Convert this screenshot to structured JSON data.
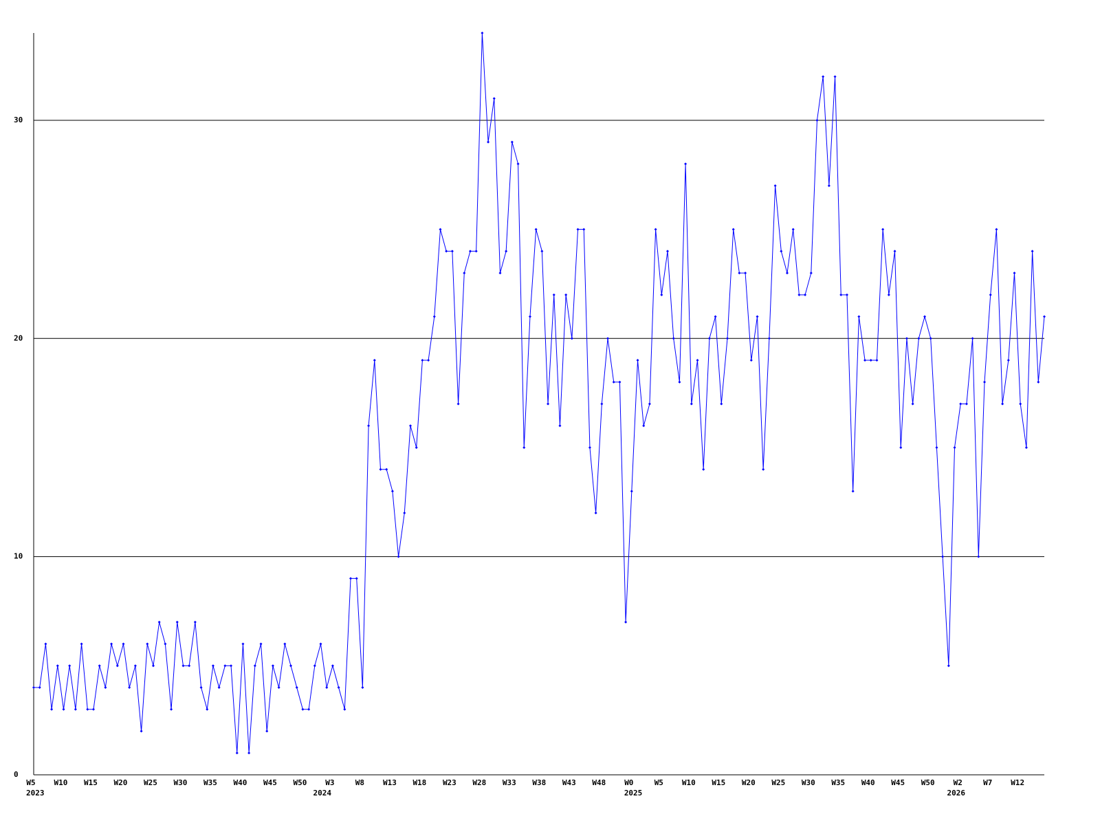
{
  "chart_data": {
    "type": "line",
    "categories": [
      "W5",
      null,
      null,
      null,
      null,
      "W10",
      null,
      null,
      null,
      null,
      "W15",
      null,
      null,
      null,
      null,
      "W20",
      null,
      null,
      null,
      null,
      "W25",
      null,
      null,
      null,
      null,
      "W30",
      null,
      null,
      null,
      null,
      "W35",
      null,
      null,
      null,
      null,
      "W40",
      null,
      null,
      null,
      null,
      "W45",
      null,
      null,
      null,
      null,
      "W50",
      null,
      null,
      null,
      null,
      "W3",
      null,
      null,
      null,
      null,
      "W8",
      null,
      null,
      null,
      null,
      "W13",
      null,
      null,
      null,
      null,
      "W18",
      null,
      null,
      null,
      null,
      "W23",
      null,
      null,
      null,
      null,
      "W28",
      null,
      null,
      null,
      null,
      "W33",
      null,
      null,
      null,
      null,
      "W38",
      null,
      null,
      null,
      null,
      "W43",
      null,
      null,
      null,
      null,
      "W48",
      null,
      null,
      null,
      null,
      "W0",
      null,
      null,
      null,
      null,
      "W5",
      null,
      null,
      null,
      null,
      "W10",
      null,
      null,
      null,
      null,
      "W15",
      null,
      null,
      null,
      null,
      "W20",
      null,
      null,
      null,
      null,
      "W25",
      null,
      null,
      null,
      null,
      "W30",
      null,
      null,
      null,
      null,
      "W35",
      null,
      null,
      null,
      null,
      "W40",
      null,
      null,
      null,
      null,
      "W45",
      null,
      null,
      null,
      null,
      "W50",
      null,
      null,
      null,
      null,
      "W2",
      null,
      null,
      null,
      null,
      "W7",
      null,
      null,
      null,
      null,
      "W12",
      null,
      null,
      null,
      null
    ],
    "category_years": [
      "2023",
      null,
      null,
      null,
      null,
      null,
      null,
      null,
      null,
      null,
      null,
      null,
      null,
      null,
      null,
      null,
      null,
      null,
      null,
      null,
      null,
      null,
      null,
      null,
      null,
      null,
      null,
      null,
      null,
      null,
      null,
      null,
      null,
      null,
      null,
      null,
      null,
      null,
      null,
      null,
      null,
      null,
      null,
      null,
      null,
      null,
      null,
      null,
      "2024",
      null,
      null,
      null,
      null,
      null,
      null,
      null,
      null,
      null,
      null,
      null,
      null,
      null,
      null,
      null,
      null,
      null,
      null,
      null,
      null,
      null,
      null,
      null,
      null,
      null,
      null,
      null,
      null,
      null,
      null,
      null,
      null,
      null,
      null,
      null,
      null,
      null,
      null,
      null,
      null,
      null,
      null,
      null,
      null,
      null,
      null,
      null,
      null,
      null,
      null,
      null,
      "2025",
      null,
      null,
      null,
      null,
      null,
      null,
      null,
      null,
      null,
      null,
      null,
      null,
      null,
      null,
      null,
      null,
      null,
      null,
      null,
      null,
      null,
      null,
      null,
      null,
      null,
      null,
      null,
      null,
      null,
      null,
      null,
      null,
      null,
      null,
      null,
      null,
      null,
      null,
      null,
      null,
      null,
      null,
      null,
      null,
      null,
      null,
      null,
      null,
      null,
      null,
      null,
      null,
      null,
      "2026",
      null,
      null,
      null,
      null,
      null,
      null,
      null,
      null,
      null,
      null,
      null,
      null,
      null,
      null,
      null
    ],
    "series": [
      {
        "color": "#0000ff",
        "values": [
          4,
          4,
          6,
          3,
          5,
          3,
          5,
          3,
          6,
          3,
          3,
          5,
          4,
          6,
          5,
          6,
          4,
          5,
          2,
          6,
          5,
          7,
          6,
          3,
          7,
          5,
          5,
          7,
          4,
          3,
          5,
          4,
          5,
          5,
          1,
          6,
          1,
          5,
          6,
          2,
          5,
          4,
          6,
          5,
          4,
          3,
          3,
          5,
          6,
          4,
          5,
          4,
          3,
          9,
          9,
          4,
          16,
          19,
          14,
          14,
          13,
          10,
          12,
          16,
          15,
          19,
          19,
          21,
          25,
          24,
          24,
          17,
          23,
          24,
          24,
          34,
          29,
          31,
          23,
          24,
          29,
          28,
          15,
          21,
          25,
          24,
          17,
          22,
          16,
          22,
          20,
          25,
          25,
          15,
          12,
          17,
          20,
          18,
          18,
          7,
          13,
          19,
          16,
          17,
          25,
          22,
          24,
          20,
          18,
          28,
          17,
          19,
          14,
          20,
          21,
          17,
          20,
          25,
          23,
          23,
          19,
          21,
          14,
          20,
          27,
          24,
          23,
          25,
          22,
          22,
          23,
          30,
          32,
          27,
          32,
          22,
          22,
          13,
          21,
          19,
          19,
          19,
          25,
          22,
          24,
          15,
          20,
          17,
          20,
          21,
          20,
          15,
          10,
          5,
          15,
          17,
          17,
          20,
          10,
          18,
          22,
          25,
          17,
          19,
          23,
          17,
          15,
          24,
          18,
          21
        ]
      }
    ],
    "ylim": [
      0,
      34
    ],
    "yticks": [
      0,
      10,
      20,
      30
    ],
    "grid": true
  }
}
